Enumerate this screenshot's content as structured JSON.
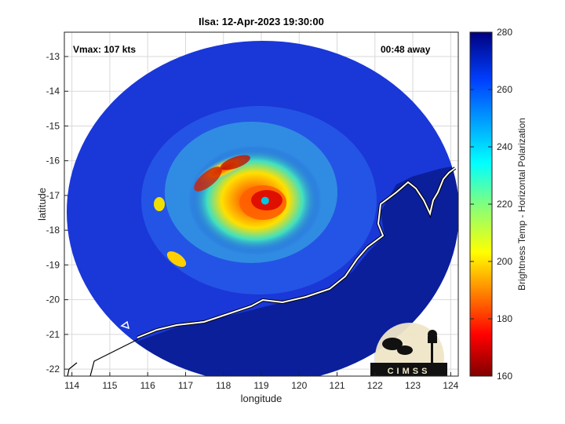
{
  "title": "Ilsa: 12-Apr-2023 19:30:00",
  "vmax_label": "Vmax: 107 kts",
  "time_label": "00:48 away",
  "xlabel": "longitude",
  "ylabel": "latitude",
  "x_ticks": [
    "114",
    "115",
    "116",
    "117",
    "118",
    "119",
    "120",
    "121",
    "122",
    "123",
    "124"
  ],
  "y_ticks": [
    "-13",
    "-14",
    "-15",
    "-16",
    "-17",
    "-18",
    "-19",
    "-20",
    "-21",
    "-22"
  ],
  "colorbar": {
    "label": "Brightness Temp - Horizontal Polarization",
    "ticks": [
      "280",
      "260",
      "240",
      "220",
      "200",
      "180",
      "160"
    ],
    "range": [
      160,
      280
    ],
    "colormap": "jet"
  },
  "logo_text": "CIMSS",
  "colors": {
    "background_swath": "#1a37d8",
    "ocean_outside": "#0b1a8c",
    "coast": "#ffffff",
    "eye": "#00c8e0"
  },
  "map": {
    "lon_range": [
      113.8,
      124.2
    ],
    "lat_range": [
      -22.2,
      -12.3
    ],
    "storm_center": {
      "lon": 119.1,
      "lat": -17.15
    }
  }
}
